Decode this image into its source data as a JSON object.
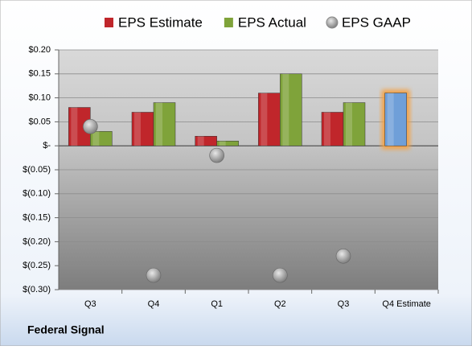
{
  "chart_data": {
    "type": "bar",
    "title": "Federal Signal",
    "categories": [
      "Q3",
      "Q4",
      "Q1",
      "Q2",
      "Q3",
      "Q4 Estimate"
    ],
    "series": [
      {
        "name": "EPS Estimate",
        "color": "#c0262b",
        "values": [
          0.08,
          0.07,
          0.02,
          0.11,
          0.07,
          0.11
        ],
        "colors": [
          "#c0262b",
          "#c0262b",
          "#c0262b",
          "#c0262b",
          "#c0262b",
          "#6f9fd8"
        ]
      },
      {
        "name": "EPS Actual",
        "color": "#7fa33a",
        "values": [
          0.03,
          0.09,
          0.01,
          0.15,
          0.09,
          null
        ]
      },
      {
        "name": "EPS GAAP",
        "color": "#a8a8a8",
        "type": "scatter",
        "values": [
          0.04,
          -0.27,
          -0.02,
          -0.27,
          -0.23,
          null
        ]
      }
    ],
    "ylim": [
      -0.3,
      0.2
    ],
    "yticks": [
      {
        "value": 0.2,
        "label": "$0.20"
      },
      {
        "value": 0.15,
        "label": "$0.15"
      },
      {
        "value": 0.1,
        "label": "$0.10"
      },
      {
        "value": 0.05,
        "label": "$0.05"
      },
      {
        "value": 0,
        "label": "$-"
      },
      {
        "value": -0.05,
        "label": "$(0.05)"
      },
      {
        "value": -0.1,
        "label": "$(0.10)"
      },
      {
        "value": -0.15,
        "label": "$(0.15)"
      },
      {
        "value": -0.2,
        "label": "$(0.20)"
      },
      {
        "value": -0.25,
        "label": "$(0.25)"
      },
      {
        "value": -0.3,
        "label": "$(0.30)"
      }
    ],
    "grid": true
  }
}
